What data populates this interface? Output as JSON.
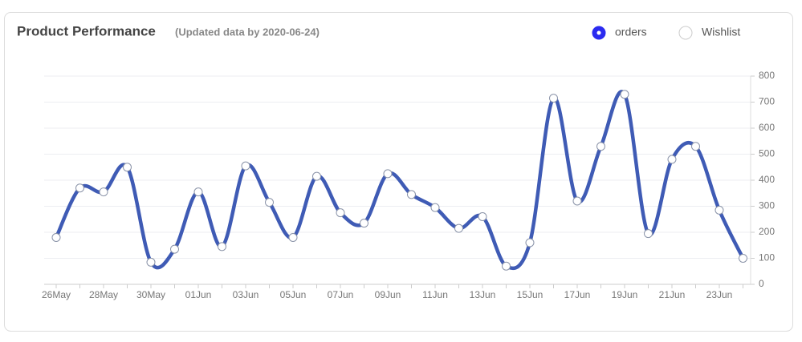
{
  "chart_data": {
    "type": "line",
    "title": "Product Performance",
    "subtitle": "(Updated data by 2020-06-24)",
    "categories": [
      "26May",
      null,
      "28May",
      null,
      "30May",
      null,
      "01Jun",
      null,
      "03Jun",
      null,
      "05Jun",
      null,
      "07Jun",
      null,
      "09Jun",
      null,
      "11Jun",
      null,
      "13Jun",
      null,
      "15Jun",
      null,
      "17Jun",
      null,
      "19Jun",
      null,
      "21Jun",
      null,
      "23Jun",
      null
    ],
    "series": [
      {
        "name": "orders",
        "color": "#3f5bb5",
        "values": [
          180,
          370,
          355,
          450,
          85,
          135,
          355,
          145,
          455,
          315,
          180,
          415,
          275,
          235,
          425,
          345,
          295,
          215,
          260,
          70,
          160,
          715,
          320,
          530,
          730,
          195,
          480,
          530,
          285,
          100
        ]
      },
      {
        "name": "Wishlist",
        "color": "#ffffff",
        "hidden": true
      }
    ],
    "ylim": [
      0,
      800
    ],
    "yticks": [
      0,
      100,
      200,
      300,
      400,
      500,
      600,
      700,
      800
    ],
    "grid": true,
    "smooth": true,
    "legend": "top-right"
  }
}
